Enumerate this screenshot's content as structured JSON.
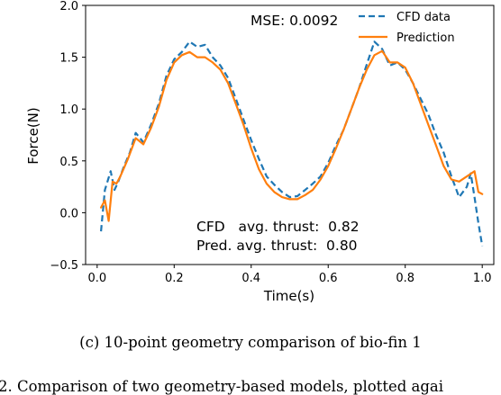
{
  "chart_data": {
    "type": "line",
    "xlabel": "Time(s)",
    "ylabel": "Force(N)",
    "xlim": [
      -0.03,
      1.03
    ],
    "ylim": [
      -0.5,
      2.0
    ],
    "xticks": [
      0.0,
      0.2,
      0.4,
      0.6,
      0.8,
      1.0
    ],
    "xtick_labels": [
      "0.0",
      "0.2",
      "0.4",
      "0.6",
      "0.8",
      "1.0"
    ],
    "yticks": [
      -0.5,
      0.0,
      0.5,
      1.0,
      1.5,
      2.0
    ],
    "ytick_labels": [
      "−0.5",
      "0.0",
      "0.5",
      "1.0",
      "1.5",
      "2.0"
    ],
    "grid": false,
    "legend_position": "top-right",
    "annotations": {
      "mse": "MSE: 0.0092",
      "cfd_thrust": "CFD   avg. thrust:  0.82",
      "pred_thrust": "Pred. avg. thrust:  0.80"
    },
    "series": [
      {
        "name": "CFD data",
        "style": "dashed",
        "color": "#1f77b4",
        "x": [
          0.01,
          0.02,
          0.035,
          0.045,
          0.055,
          0.07,
          0.085,
          0.1,
          0.12,
          0.14,
          0.16,
          0.18,
          0.2,
          0.22,
          0.24,
          0.26,
          0.28,
          0.3,
          0.32,
          0.34,
          0.36,
          0.38,
          0.4,
          0.42,
          0.44,
          0.46,
          0.48,
          0.5,
          0.52,
          0.54,
          0.56,
          0.58,
          0.6,
          0.62,
          0.64,
          0.66,
          0.68,
          0.7,
          0.72,
          0.74,
          0.76,
          0.78,
          0.8,
          0.82,
          0.84,
          0.86,
          0.88,
          0.9,
          0.92,
          0.94,
          0.96,
          0.97,
          0.98,
          0.99,
          1.0
        ],
        "y": [
          -0.18,
          0.22,
          0.4,
          0.22,
          0.3,
          0.45,
          0.58,
          0.77,
          0.68,
          0.85,
          1.05,
          1.32,
          1.48,
          1.55,
          1.65,
          1.6,
          1.62,
          1.5,
          1.42,
          1.3,
          1.1,
          0.9,
          0.7,
          0.52,
          0.35,
          0.27,
          0.2,
          0.15,
          0.16,
          0.22,
          0.28,
          0.35,
          0.48,
          0.65,
          0.8,
          1.0,
          1.2,
          1.43,
          1.65,
          1.58,
          1.42,
          1.45,
          1.38,
          1.25,
          1.1,
          0.95,
          0.75,
          0.58,
          0.35,
          0.15,
          0.25,
          0.38,
          0.15,
          -0.1,
          -0.32
        ]
      },
      {
        "name": "Prediction",
        "style": "solid",
        "color": "#ff7f0e",
        "x": [
          0.01,
          0.02,
          0.03,
          0.04,
          0.05,
          0.06,
          0.08,
          0.1,
          0.12,
          0.14,
          0.16,
          0.18,
          0.2,
          0.22,
          0.24,
          0.26,
          0.28,
          0.3,
          0.32,
          0.34,
          0.36,
          0.38,
          0.4,
          0.42,
          0.44,
          0.46,
          0.48,
          0.5,
          0.52,
          0.54,
          0.56,
          0.58,
          0.6,
          0.62,
          0.64,
          0.66,
          0.68,
          0.7,
          0.72,
          0.74,
          0.76,
          0.78,
          0.8,
          0.82,
          0.84,
          0.86,
          0.88,
          0.9,
          0.92,
          0.94,
          0.96,
          0.98,
          0.99,
          1.0
        ],
        "y": [
          0.05,
          0.12,
          -0.08,
          0.3,
          0.28,
          0.35,
          0.52,
          0.72,
          0.66,
          0.82,
          1.02,
          1.28,
          1.45,
          1.52,
          1.55,
          1.5,
          1.5,
          1.45,
          1.38,
          1.25,
          1.05,
          0.85,
          0.62,
          0.42,
          0.28,
          0.2,
          0.15,
          0.13,
          0.13,
          0.17,
          0.22,
          0.32,
          0.45,
          0.62,
          0.8,
          1.0,
          1.2,
          1.38,
          1.52,
          1.56,
          1.45,
          1.45,
          1.4,
          1.25,
          1.05,
          0.85,
          0.65,
          0.45,
          0.32,
          0.3,
          0.35,
          0.4,
          0.2,
          0.18
        ]
      }
    ]
  },
  "caption": "(c) 10-point geometry comparison of bio-fin 1",
  "bottom_text": "2.  Comparison of two geometry-based models, plotted agai"
}
